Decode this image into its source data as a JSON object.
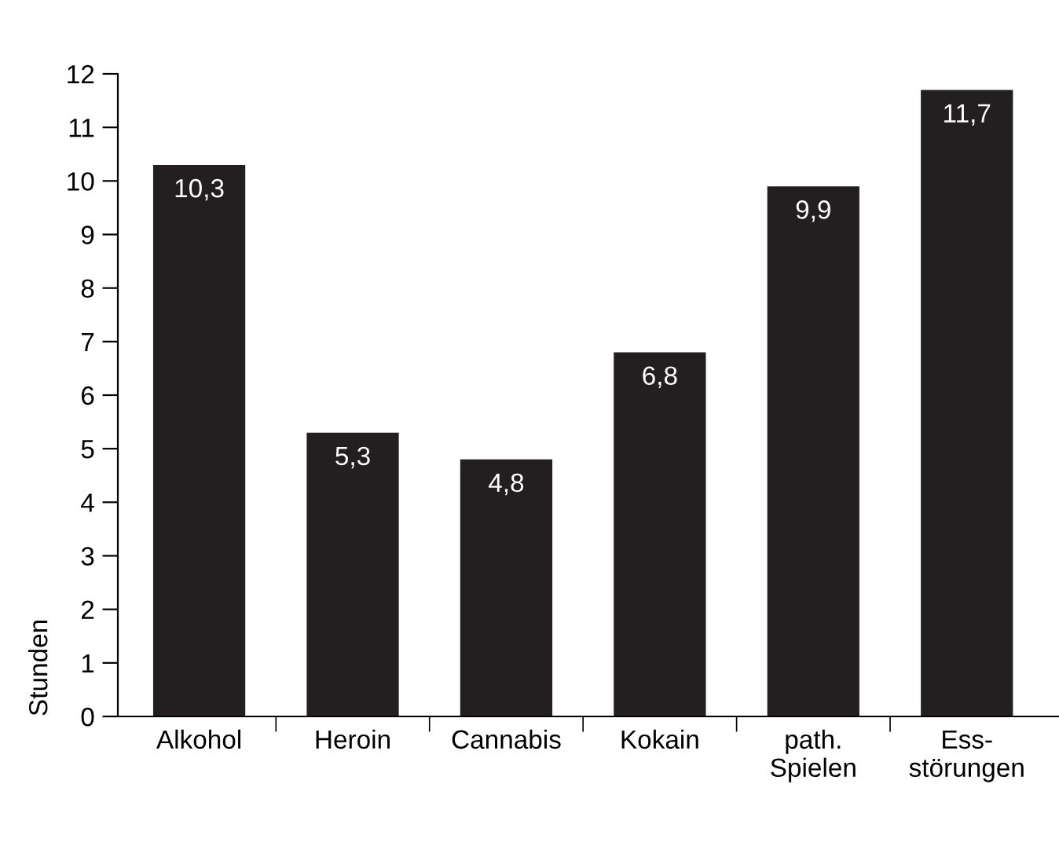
{
  "chart_data": {
    "type": "bar",
    "ylabel": "Stunden",
    "categories": [
      "Alkohol",
      "Heroin",
      "Cannabis",
      "Kokain",
      "path.\nSpielen",
      "Ess-\nstörungen"
    ],
    "values": [
      10.3,
      5.3,
      4.8,
      6.8,
      9.9,
      11.7
    ],
    "value_labels": [
      "10,3",
      "5,3",
      "4,8",
      "6,8",
      "9,9",
      "11,7"
    ],
    "color": "#231f20",
    "ylim": [
      0,
      12
    ],
    "yticks": [
      0,
      1,
      2,
      3,
      4,
      5,
      6,
      7,
      8,
      9,
      10,
      11,
      12
    ],
    "grid": false,
    "legend": false
  }
}
